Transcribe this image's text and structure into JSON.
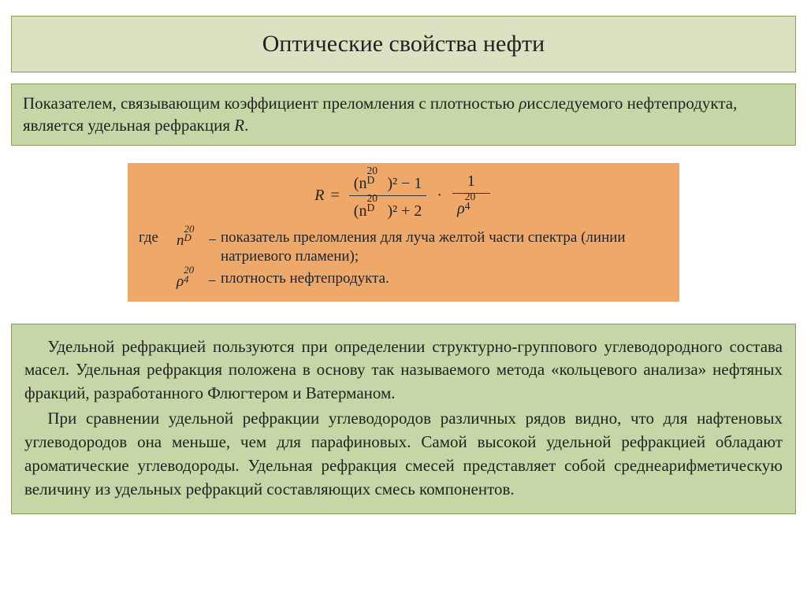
{
  "title": "Оптические свойства нефти",
  "intro": {
    "part1": "Показателем, связывающим коэффициент преломления с плотностью ",
    "rho": "ρ",
    "part2": "исследуемого нефтепродукта, является удельная рефракция ",
    "R": "R",
    "part3": "."
  },
  "formula": {
    "R": "R",
    "eq": "=",
    "num": "(n",
    "nd_sup": "20",
    "nd_sub": "D",
    "num_tail": ")² − 1",
    "den_tail": ")² + 2",
    "dot": "·",
    "one": "1",
    "rho": "ρ",
    "rho_sup": "20",
    "rho_sub": "4",
    "where": "где",
    "legend1_sym": "n",
    "legend1_txt": "показатель преломления для луча желтой части спектра (линии натриевого пламени);",
    "legend2_sym": "ρ",
    "legend2_txt": "плотность нефтепродукта.",
    "dash": "−"
  },
  "body": {
    "p1": "Удельной рефракцией пользуются при определении структурно-группового углеводородного состава масел. Удельная рефракция положена в основу так называемого метода «кольцевого анализа» нефтяных фракций, разработанного Флюгтером и Ватерманом.",
    "p2": "При сравнении удельной рефракции углеводородов различных рядов видно, что для нафтеновых углеводородов она меньше, чем для парафиновых. Самой высокой удельной рефракцией обладают ароматические углеводороды. Удельная рефракция смесей представляет собой среднеарифметическую величину из удельных рефракций составляющих смесь компонентов."
  },
  "colors": {
    "title_bg": "#dbe2c1",
    "box_bg": "#c5d7a6",
    "formula_bg": "#eea96a",
    "border": "#8a9a5a",
    "text": "#222222",
    "page_bg": "#ffffff"
  }
}
